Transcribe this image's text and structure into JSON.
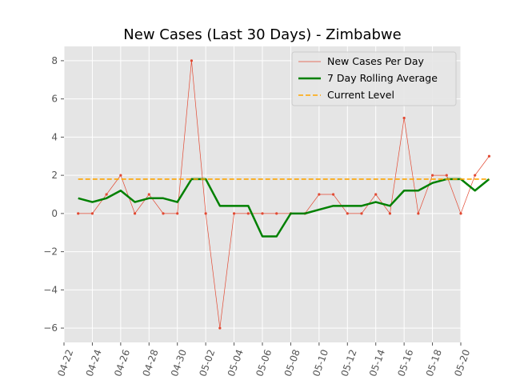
{
  "chart_data": {
    "type": "line",
    "title": "New Cases (Last 30 Days) - Zimbabwe",
    "xlabel": "",
    "ylabel": "",
    "x_range": [
      "2020-04-22",
      "2020-05-20"
    ],
    "ylim": [
      -6.75,
      8.75
    ],
    "y_ticks": [
      -6,
      -4,
      -2,
      0,
      2,
      4,
      6,
      8
    ],
    "x_ticks": [
      "2020-04-22",
      "2020-04-24",
      "2020-04-26",
      "2020-04-28",
      "2020-04-30",
      "2020-05-02",
      "2020-05-04",
      "2020-05-06",
      "2020-05-08",
      "2020-05-10",
      "2020-05-12",
      "2020-05-14",
      "2020-05-16",
      "2020-05-18",
      "2020-05-20"
    ],
    "x_tick_labels": [
      "04-22",
      "04-24",
      "04-26",
      "04-28",
      "04-30",
      "05-02",
      "05-04",
      "05-06",
      "05-08",
      "05-10",
      "05-12",
      "05-14",
      "05-16",
      "05-18",
      "05-20"
    ],
    "grid": true,
    "legend_position": "top-right",
    "x": [
      "2020-04-23",
      "2020-04-24",
      "2020-04-25",
      "2020-04-26",
      "2020-04-27",
      "2020-04-28",
      "2020-04-29",
      "2020-04-30",
      "2020-05-01",
      "2020-05-02",
      "2020-05-03",
      "2020-05-04",
      "2020-05-05",
      "2020-05-06",
      "2020-05-07",
      "2020-05-08",
      "2020-05-09",
      "2020-05-10",
      "2020-05-11",
      "2020-05-12",
      "2020-05-13",
      "2020-05-14",
      "2020-05-15",
      "2020-05-16",
      "2020-05-17",
      "2020-05-18",
      "2020-05-19",
      "2020-05-20",
      "2020-05-21",
      "2020-05-22"
    ],
    "series": [
      {
        "name": "New Cases Per Day",
        "color": "#e24a33",
        "style": "thin-line-with-markers",
        "x": [
          "2020-04-23",
          "2020-04-24",
          "2020-04-25",
          "2020-04-26",
          "2020-04-27",
          "2020-04-28",
          "2020-04-29",
          "2020-04-30",
          "2020-05-01",
          "2020-05-02",
          "2020-05-03",
          "2020-05-04",
          "2020-05-05",
          "2020-05-06",
          "2020-05-07",
          "2020-05-08",
          "2020-05-09",
          "2020-05-10",
          "2020-05-11",
          "2020-05-12",
          "2020-05-13",
          "2020-05-14",
          "2020-05-15",
          "2020-05-16",
          "2020-05-17",
          "2020-05-18",
          "2020-05-19",
          "2020-05-20",
          "2020-05-21",
          "2020-05-22"
        ],
        "values": [
          0,
          0,
          1,
          2,
          0,
          1,
          0,
          0,
          8,
          0,
          -6,
          0,
          0,
          0,
          0,
          0,
          0,
          1,
          1,
          0,
          0,
          1,
          0,
          5,
          0,
          2,
          2,
          0,
          2,
          3
        ]
      },
      {
        "name": "7 Day Rolling Average",
        "color": "#008000",
        "style": "thick-line",
        "x": [
          "2020-04-23",
          "2020-04-24",
          "2020-04-25",
          "2020-04-26",
          "2020-04-27",
          "2020-04-28",
          "2020-04-29",
          "2020-04-30",
          "2020-05-01",
          "2020-05-02",
          "2020-05-03",
          "2020-05-04",
          "2020-05-05",
          "2020-05-06",
          "2020-05-07",
          "2020-05-08",
          "2020-05-09",
          "2020-05-10",
          "2020-05-11",
          "2020-05-12",
          "2020-05-13",
          "2020-05-14",
          "2020-05-15",
          "2020-05-16",
          "2020-05-17",
          "2020-05-18",
          "2020-05-19",
          "2020-05-20",
          "2020-05-21",
          "2020-05-22"
        ],
        "values": [
          0.8,
          0.6,
          0.8,
          1.2,
          0.6,
          0.8,
          0.8,
          0.6,
          1.8,
          1.8,
          0.4,
          0.4,
          0.4,
          -1.2,
          -1.2,
          0,
          0,
          0.2,
          0.4,
          0.4,
          0.4,
          0.6,
          0.4,
          1.2,
          1.2,
          1.6,
          1.8,
          1.8,
          1.2,
          1.8
        ]
      },
      {
        "name": "Current Level",
        "color": "#ffa500",
        "style": "dashed-line",
        "x": [
          "2020-04-23",
          "2020-05-22"
        ],
        "values": [
          1.8,
          1.8
        ]
      }
    ]
  }
}
